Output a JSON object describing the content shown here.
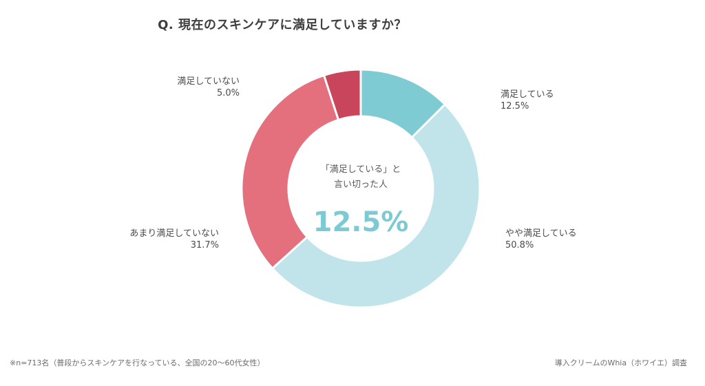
{
  "chart_data": {
    "type": "pie",
    "title": "Q. 現在のスキンケアに満足していますか？",
    "slices": [
      {
        "label": "満足している",
        "value": 12.5,
        "value_text": "12.5%",
        "color": "#7ecbd4"
      },
      {
        "label": "やや満足している",
        "value": 50.8,
        "value_text": "50.8%",
        "color": "#c0e4ea"
      },
      {
        "label": "あまり満足していない",
        "value": 31.7,
        "value_text": "31.7%",
        "color": "#e4707d"
      },
      {
        "label": "満足していない",
        "value": 5.0,
        "value_text": "5.0%",
        "color": "#c9455b"
      }
    ],
    "center": {
      "caption_line1": "「満足している」と",
      "caption_line2": "言い切った人",
      "value": "12.5%"
    },
    "footnote": "※n=713名（普段からスキンケアを行なっている、全国の20〜60代女性）",
    "source": "導入クリームのWhia（ホワイエ）調査"
  }
}
